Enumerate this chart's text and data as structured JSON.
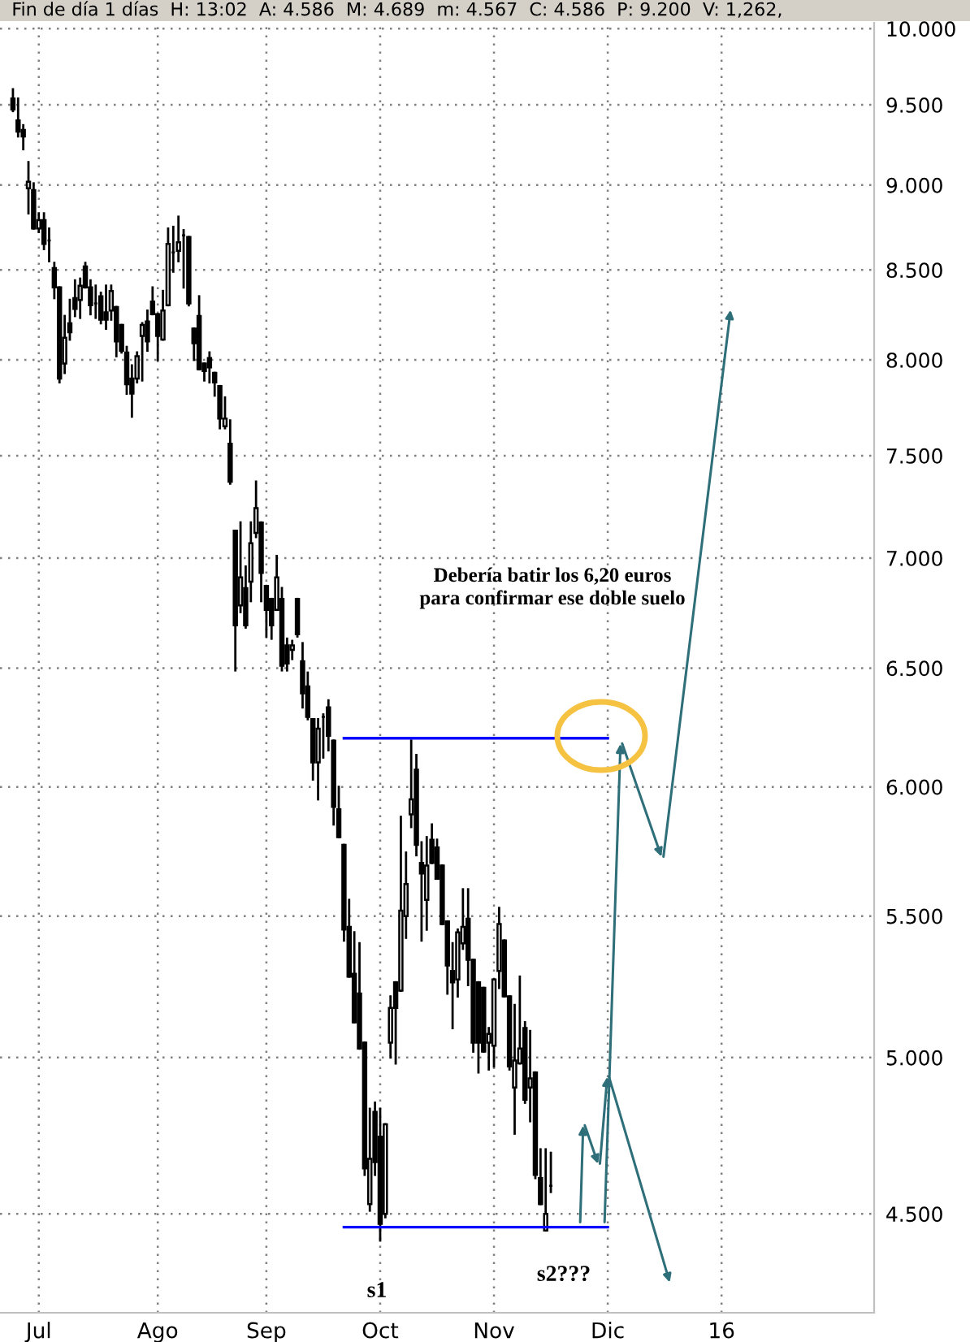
{
  "chart_data": {
    "type": "candlestick",
    "subtitle": "Fin de día 1 días  H: 13:02  A: 4.586  M: 4.689  m: 4.567  C: 4.586  P: 9.200  V: 1,262,",
    "categories": [
      null,
      null,
      null,
      null,
      null,
      "Jul",
      null,
      null,
      null,
      null,
      null,
      null,
      null,
      null,
      null,
      null,
      null,
      null,
      null,
      null,
      null,
      null,
      null,
      null,
      null,
      null,
      null,
      null,
      "Ago",
      null,
      null,
      null,
      null,
      null,
      null,
      null,
      null,
      null,
      null,
      null,
      null,
      null,
      null,
      null,
      null,
      null,
      null,
      null,
      null,
      "Sep",
      null,
      null,
      null,
      null,
      null,
      null,
      null,
      null,
      null,
      null,
      null,
      null,
      null,
      null,
      null,
      null,
      null,
      null,
      null,
      null,
      null,
      "Oct",
      null,
      null,
      null,
      null,
      null,
      null,
      null,
      null,
      null,
      null,
      null,
      null,
      null,
      null,
      null,
      null,
      null,
      null,
      null,
      null,
      null,
      "Nov",
      null,
      null,
      null,
      null,
      null,
      null,
      null,
      null,
      null,
      null,
      null,
      null,
      null,
      null,
      null,
      null,
      null,
      null,
      null,
      null,
      null,
      "Dic",
      null,
      null,
      null,
      null,
      null,
      null,
      null,
      null,
      null,
      null,
      null,
      null,
      null,
      null,
      null,
      null,
      null,
      null,
      null,
      null,
      null,
      "16",
      null,
      null,
      null,
      null,
      null,
      null,
      null,
      null,
      null,
      null,
      null,
      null,
      null,
      null,
      null,
      null,
      null,
      null,
      null,
      null,
      null,
      null,
      null,
      null,
      null,
      null,
      null,
      null,
      null
    ],
    "ohlc": [
      [
        9.54,
        9.6,
        9.46,
        9.47
      ],
      [
        9.4,
        9.54,
        9.3,
        9.33
      ],
      [
        9.34,
        9.37,
        9.22,
        9.3
      ],
      [
        8.98,
        9.14,
        8.83,
        9.02
      ],
      [
        8.97,
        9.01,
        8.74,
        8.74
      ],
      [
        8.74,
        8.83,
        8.72,
        8.79
      ],
      [
        8.79,
        8.83,
        8.62,
        8.65
      ],
      [
        8.67,
        8.74,
        8.55,
        8.67
      ],
      [
        8.51,
        8.54,
        8.34,
        8.4
      ],
      [
        8.4,
        8.4,
        7.88,
        7.9
      ],
      [
        7.98,
        8.24,
        7.93,
        8.12
      ],
      [
        8.2,
        8.33,
        8.11,
        8.15
      ],
      [
        8.34,
        8.44,
        8.24,
        8.28
      ],
      [
        8.33,
        8.45,
        8.23,
        8.41
      ],
      [
        8.52,
        8.54,
        8.4,
        8.4
      ],
      [
        8.4,
        8.44,
        8.25,
        8.3
      ],
      [
        8.31,
        8.41,
        8.23,
        8.31
      ],
      [
        8.35,
        8.37,
        8.2,
        8.22
      ],
      [
        8.26,
        8.41,
        8.17,
        8.22
      ],
      [
        8.27,
        8.41,
        8.22,
        8.38
      ],
      [
        8.29,
        8.29,
        8.02,
        8.1
      ],
      [
        8.19,
        8.19,
        8.04,
        8.05
      ],
      [
        8.04,
        8.07,
        7.82,
        7.87
      ],
      [
        7.9,
        7.97,
        7.7,
        7.82
      ],
      [
        7.9,
        8.04,
        7.88,
        8.02
      ],
      [
        8.13,
        8.2,
        7.89,
        8.19
      ],
      [
        8.21,
        8.27,
        8.05,
        8.1
      ],
      [
        8.32,
        8.4,
        8.25,
        8.25
      ],
      [
        8.25,
        8.25,
        8.0,
        8.13
      ],
      [
        8.11,
        8.38,
        8.11,
        8.27
      ],
      [
        8.3,
        8.74,
        8.3,
        8.65
      ],
      [
        8.6,
        8.75,
        8.49,
        8.6
      ],
      [
        8.61,
        8.81,
        8.55,
        8.66
      ],
      [
        8.7,
        8.73,
        8.4,
        8.7
      ],
      [
        8.69,
        8.69,
        8.3,
        8.31
      ],
      [
        8.17,
        8.17,
        8.0,
        8.09
      ],
      [
        8.24,
        8.35,
        7.95,
        7.95
      ],
      [
        7.98,
        7.98,
        7.89,
        7.94
      ],
      [
        8.01,
        8.04,
        7.88,
        7.96
      ],
      [
        7.93,
        7.93,
        7.81,
        7.88
      ],
      [
        7.86,
        7.86,
        7.64,
        7.69
      ],
      [
        7.65,
        7.8,
        7.64,
        7.69
      ],
      [
        7.56,
        7.68,
        7.36,
        7.37
      ],
      [
        7.13,
        7.13,
        6.49,
        6.69
      ],
      [
        6.78,
        7.17,
        6.75,
        6.91
      ],
      [
        6.86,
        6.96,
        6.68,
        6.69
      ],
      [
        6.89,
        7.17,
        6.8,
        7.07
      ],
      [
        7.12,
        7.37,
        7.1,
        7.24
      ],
      [
        7.17,
        7.17,
        6.8,
        6.93
      ],
      [
        6.87,
        6.87,
        6.64,
        6.76
      ],
      [
        6.81,
        6.81,
        6.63,
        6.69
      ],
      [
        6.76,
        7.01,
        6.76,
        6.91
      ],
      [
        6.81,
        6.86,
        6.49,
        6.51
      ],
      [
        6.6,
        6.63,
        6.49,
        6.52
      ],
      [
        6.58,
        6.62,
        6.54,
        6.6
      ],
      [
        6.81,
        6.81,
        6.64,
        6.65
      ],
      [
        6.53,
        6.61,
        6.33,
        6.39
      ],
      [
        6.42,
        6.48,
        6.28,
        6.29
      ],
      [
        6.28,
        6.28,
        6.03,
        6.1
      ],
      [
        6.1,
        6.28,
        5.95,
        6.24
      ],
      [
        6.29,
        6.3,
        6.12,
        6.29
      ],
      [
        6.33,
        6.36,
        6.15,
        6.21
      ],
      [
        6.19,
        6.19,
        5.85,
        5.92
      ],
      [
        5.91,
        6.0,
        5.8,
        5.8
      ],
      [
        5.77,
        5.77,
        5.41,
        5.45
      ],
      [
        5.46,
        5.56,
        5.28,
        5.28
      ],
      [
        5.29,
        5.44,
        5.12,
        5.12
      ],
      [
        5.22,
        5.4,
        5.03,
        5.03
      ],
      [
        5.05,
        5.05,
        4.62,
        4.64
      ],
      [
        4.53,
        4.83,
        4.51,
        4.67
      ],
      [
        4.82,
        4.85,
        4.62,
        4.66
      ],
      [
        4.74,
        4.83,
        4.42,
        4.47
      ],
      [
        4.5,
        4.78,
        4.49,
        4.78
      ],
      [
        5.05,
        5.21,
        5.0,
        5.17
      ],
      [
        5.26,
        5.26,
        4.98,
        5.17
      ],
      [
        5.23,
        5.88,
        5.23,
        5.52
      ],
      [
        5.5,
        5.74,
        5.42,
        5.62
      ],
      [
        5.89,
        6.19,
        5.84,
        5.95
      ],
      [
        6.07,
        6.13,
        5.73,
        5.77
      ],
      [
        5.7,
        5.78,
        5.41,
        5.66
      ],
      [
        5.56,
        5.8,
        5.45,
        5.69
      ],
      [
        5.79,
        5.85,
        5.7,
        5.7
      ],
      [
        5.76,
        5.79,
        5.64,
        5.64
      ],
      [
        5.69,
        5.69,
        5.47,
        5.47
      ],
      [
        5.48,
        5.48,
        5.22,
        5.32
      ],
      [
        5.3,
        5.4,
        5.1,
        5.26
      ],
      [
        5.27,
        5.45,
        5.21,
        5.44
      ],
      [
        5.4,
        5.6,
        5.38,
        5.46
      ],
      [
        5.49,
        5.6,
        5.25,
        5.34
      ],
      [
        5.34,
        5.34,
        5.02,
        5.05
      ],
      [
        5.26,
        5.26,
        4.95,
        5.05
      ],
      [
        5.24,
        5.24,
        5.02,
        5.02
      ],
      [
        5.05,
        5.1,
        4.96,
        5.08
      ],
      [
        5.04,
        5.27,
        4.97,
        5.27
      ],
      [
        5.3,
        5.53,
        5.24,
        5.47
      ],
      [
        5.41,
        5.41,
        5.21,
        5.21
      ],
      [
        5.21,
        5.21,
        4.96,
        4.97
      ],
      [
        4.9,
        5.18,
        4.75,
        4.99
      ],
      [
        4.98,
        5.28,
        4.98,
        5.03
      ],
      [
        5.1,
        5.12,
        4.85,
        4.86
      ],
      [
        4.9,
        5.09,
        4.79,
        4.93
      ],
      [
        4.95,
        4.95,
        4.61,
        4.62
      ],
      [
        4.61,
        4.7,
        4.53,
        4.53
      ],
      [
        4.45,
        4.7,
        4.45,
        4.5
      ],
      [
        4.586,
        4.689,
        4.567,
        4.586
      ],
      null,
      null,
      null,
      null,
      null,
      null,
      null,
      null,
      null,
      null,
      null,
      null,
      null,
      null,
      null,
      null,
      null,
      null,
      null,
      null,
      null,
      null,
      null,
      null,
      null,
      null,
      null,
      null,
      null,
      null,
      null,
      null,
      null,
      null,
      null,
      null,
      null,
      null,
      null,
      null,
      null,
      null,
      null,
      null,
      null,
      null,
      null,
      null,
      null,
      null,
      null,
      null,
      null,
      null,
      null,
      null,
      null,
      null,
      null,
      null,
      null,
      null
    ],
    "series": [
      {
        "type": "line",
        "color": "#0000ff",
        "values": [
          null,
          null,
          null,
          null,
          null,
          null,
          null,
          null,
          null,
          null,
          null,
          null,
          null,
          null,
          null,
          null,
          null,
          null,
          null,
          null,
          null,
          null,
          null,
          null,
          null,
          null,
          null,
          null,
          null,
          null,
          null,
          null,
          null,
          null,
          null,
          null,
          null,
          null,
          null,
          null,
          null,
          null,
          null,
          null,
          null,
          null,
          null,
          null,
          null,
          null,
          null,
          null,
          null,
          null,
          null,
          null,
          null,
          null,
          null,
          null,
          null,
          null,
          null,
          null,
          6.2,
          6.2,
          6.2,
          6.2,
          6.2,
          6.2,
          6.2,
          6.2,
          6.2,
          6.2,
          6.2,
          6.2,
          6.2,
          6.2,
          6.2,
          6.2,
          6.2,
          6.2,
          6.2,
          6.2,
          6.2,
          6.2,
          6.2,
          6.2,
          6.2,
          6.2,
          6.2,
          6.2,
          6.2,
          6.2,
          6.2,
          6.2,
          6.2,
          6.2,
          6.2,
          6.2,
          6.2,
          6.2,
          6.2,
          6.2,
          6.2,
          6.2,
          6.2,
          6.2,
          6.2,
          6.2,
          6.2,
          6.2,
          6.2,
          6.2,
          6.2,
          6.2,
          null,
          null,
          null,
          null,
          null,
          null,
          null,
          null,
          null,
          null,
          null,
          null,
          null,
          null,
          null,
          null,
          null,
          null,
          null,
          null,
          null,
          null,
          null,
          null,
          null,
          null,
          null,
          null,
          null,
          null,
          null,
          null,
          null,
          null,
          null,
          null,
          null,
          null,
          null,
          null,
          null,
          null,
          null,
          null,
          null,
          null,
          null,
          null,
          null,
          null,
          null
        ]
      },
      {
        "type": "line",
        "color": "#0000ff",
        "values": [
          null,
          null,
          null,
          null,
          null,
          null,
          null,
          null,
          null,
          null,
          null,
          null,
          null,
          null,
          null,
          null,
          null,
          null,
          null,
          null,
          null,
          null,
          null,
          null,
          null,
          null,
          null,
          null,
          null,
          null,
          null,
          null,
          null,
          null,
          null,
          null,
          null,
          null,
          null,
          null,
          null,
          null,
          null,
          null,
          null,
          null,
          null,
          null,
          null,
          null,
          null,
          null,
          null,
          null,
          null,
          null,
          null,
          null,
          null,
          null,
          null,
          null,
          null,
          null,
          4.46,
          4.46,
          4.46,
          4.46,
          4.46,
          4.46,
          4.46,
          4.46,
          4.46,
          4.46,
          4.46,
          4.46,
          4.46,
          4.46,
          4.46,
          4.46,
          4.46,
          4.46,
          4.46,
          4.46,
          4.46,
          4.46,
          4.46,
          4.46,
          4.46,
          4.46,
          4.46,
          4.46,
          4.46,
          4.46,
          4.46,
          4.46,
          4.46,
          4.46,
          4.46,
          4.46,
          4.46,
          4.46,
          4.46,
          4.46,
          4.46,
          4.46,
          4.46,
          4.46,
          4.46,
          4.46,
          4.46,
          4.46,
          4.46,
          4.46,
          4.46,
          4.46,
          null,
          null,
          null,
          null,
          null,
          null,
          null,
          null,
          null,
          null,
          null,
          null,
          null,
          null,
          null,
          null,
          null,
          null,
          null,
          null,
          null,
          null,
          null,
          null,
          null,
          null,
          null,
          null,
          null,
          null,
          null,
          null,
          null,
          null,
          null,
          null,
          null,
          null,
          null,
          null,
          null,
          null,
          null,
          null,
          null,
          null,
          null,
          null,
          null,
          null,
          null
        ]
      }
    ],
    "log": true,
    "ylim": [
      4.21,
      10.04
    ],
    "yticks": [
      {
        "value": 4.5,
        "label": "4.500"
      },
      {
        "value": 5,
        "label": "5.000"
      },
      {
        "value": 5.5,
        "label": "5.500"
      },
      {
        "value": 6,
        "label": "6.000"
      },
      {
        "value": 6.5,
        "label": "6.500"
      },
      {
        "value": 7,
        "label": "7.000"
      },
      {
        "value": 7.5,
        "label": "7.500"
      },
      {
        "value": 8,
        "label": "8.000"
      },
      {
        "value": 8.5,
        "label": "8.500"
      },
      {
        "value": 9,
        "label": "9.000"
      },
      {
        "value": 9.5,
        "label": "9.500"
      },
      {
        "value": 10,
        "label": "10.000"
      }
    ],
    "grid": true,
    "annotations": [
      "Debería batir los 6,20 euros\npara confirmar ese doble suelo",
      "s1",
      "s2???"
    ]
  }
}
